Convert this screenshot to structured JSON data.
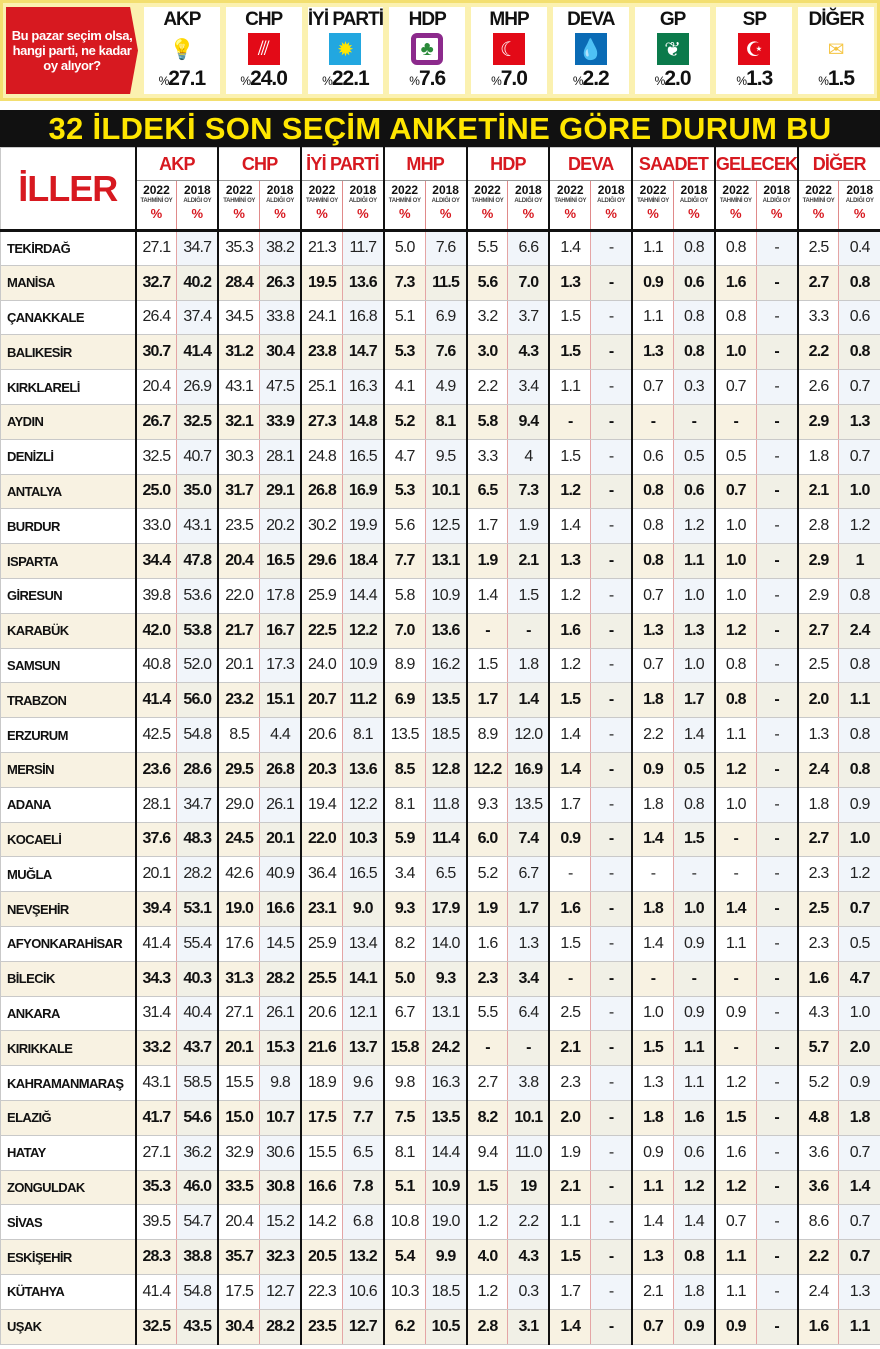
{
  "banner": {
    "question": "Bu pazar seçim olsa, hangi parti, ne kadar oy alıyor?",
    "parties": [
      {
        "name": "AKP",
        "value": "27.1",
        "icon": "light-bulb-icon",
        "color": "#f7a21b"
      },
      {
        "name": "CHP",
        "value": "24.0",
        "icon": "six-arrows-icon",
        "color": "#e30a17"
      },
      {
        "name": "İYİ PARTİ",
        "value": "22.1",
        "icon": "sun-icon",
        "color": "#22a7e0"
      },
      {
        "name": "HDP",
        "value": "7.6",
        "icon": "tree-icon",
        "color": "#8c2a8c"
      },
      {
        "name": "MHP",
        "value": "7.0",
        "icon": "three-crescents-icon",
        "color": "#e30a17"
      },
      {
        "name": "DEVA",
        "value": "2.2",
        "icon": "water-drop-icon",
        "color": "#0a6bb5"
      },
      {
        "name": "GP",
        "value": "2.0",
        "icon": "leaf-icon",
        "color": "#0b7a4b"
      },
      {
        "name": "SP",
        "value": "1.3",
        "icon": "crescent-star-icon",
        "color": "#e30a17"
      },
      {
        "name": "DİĞER",
        "value": "1.5",
        "icon": "ballot-box-icon",
        "color": "#f5c542"
      }
    ],
    "percent_sign": "%"
  },
  "title": "32 İLDEKİ SON SEÇİM ANKETİNE GÖRE DURUM BU",
  "chart_data": {
    "type": "table",
    "title": "32 İLDEKİ SON SEÇİM ANKETİNE GÖRE DURUM BU",
    "row_header": "İLLER",
    "groups": [
      "AKP",
      "CHP",
      "İYİ PARTİ",
      "MHP",
      "HDP",
      "DEVA",
      "SAADET",
      "GELECEK",
      "DİĞER"
    ],
    "subcolumns": [
      {
        "year": "2022",
        "label": "TAHMİNİ OY",
        "unit": "%"
      },
      {
        "year": "2018",
        "label": "ALDIĞI OY",
        "unit": "%"
      }
    ],
    "rows": [
      {
        "city": "TEKİRDAĞ",
        "values": [
          "27.1",
          "34.7",
          "35.3",
          "38.2",
          "21.3",
          "11.7",
          "5.0",
          "7.6",
          "5.5",
          "6.6",
          "1.4",
          "-",
          "1.1",
          "0.8",
          "0.8",
          "-",
          "2.5",
          "0.4"
        ]
      },
      {
        "city": "MANİSA",
        "values": [
          "32.7",
          "40.2",
          "28.4",
          "26.3",
          "19.5",
          "13.6",
          "7.3",
          "11.5",
          "5.6",
          "7.0",
          "1.3",
          "-",
          "0.9",
          "0.6",
          "1.6",
          "-",
          "2.7",
          "0.8"
        ]
      },
      {
        "city": "ÇANAKKALE",
        "values": [
          "26.4",
          "37.4",
          "34.5",
          "33.8",
          "24.1",
          "16.8",
          "5.1",
          "6.9",
          "3.2",
          "3.7",
          "1.5",
          "-",
          "1.1",
          "0.8",
          "0.8",
          "-",
          "3.3",
          "0.6"
        ]
      },
      {
        "city": "BALIKESİR",
        "values": [
          "30.7",
          "41.4",
          "31.2",
          "30.4",
          "23.8",
          "14.7",
          "5.3",
          "7.6",
          "3.0",
          "4.3",
          "1.5",
          "-",
          "1.3",
          "0.8",
          "1.0",
          "-",
          "2.2",
          "0.8"
        ]
      },
      {
        "city": "KIRKLARELİ",
        "values": [
          "20.4",
          "26.9",
          "43.1",
          "47.5",
          "25.1",
          "16.3",
          "4.1",
          "4.9",
          "2.2",
          "3.4",
          "1.1",
          "-",
          "0.7",
          "0.3",
          "0.7",
          "-",
          "2.6",
          "0.7"
        ]
      },
      {
        "city": "AYDIN",
        "values": [
          "26.7",
          "32.5",
          "32.1",
          "33.9",
          "27.3",
          "14.8",
          "5.2",
          "8.1",
          "5.8",
          "9.4",
          "-",
          "-",
          "-",
          "-",
          "-",
          "-",
          "2.9",
          "1.3"
        ]
      },
      {
        "city": "DENİZLİ",
        "values": [
          "32.5",
          "40.7",
          "30.3",
          "28.1",
          "24.8",
          "16.5",
          "4.7",
          "9.5",
          "3.3",
          "4",
          "1.5",
          "-",
          "0.6",
          "0.5",
          "0.5",
          "-",
          "1.8",
          "0.7"
        ]
      },
      {
        "city": "ANTALYA",
        "values": [
          "25.0",
          "35.0",
          "31.7",
          "29.1",
          "26.8",
          "16.9",
          "5.3",
          "10.1",
          "6.5",
          "7.3",
          "1.2",
          "-",
          "0.8",
          "0.6",
          "0.7",
          "-",
          "2.1",
          "1.0"
        ]
      },
      {
        "city": "BURDUR",
        "values": [
          "33.0",
          "43.1",
          "23.5",
          "20.2",
          "30.2",
          "19.9",
          "5.6",
          "12.5",
          "1.7",
          "1.9",
          "1.4",
          "-",
          "0.8",
          "1.2",
          "1.0",
          "-",
          "2.8",
          "1.2"
        ]
      },
      {
        "city": "ISPARTA",
        "values": [
          "34.4",
          "47.8",
          "20.4",
          "16.5",
          "29.6",
          "18.4",
          "7.7",
          "13.1",
          "1.9",
          "2.1",
          "1.3",
          "-",
          "0.8",
          "1.1",
          "1.0",
          "-",
          "2.9",
          "1"
        ]
      },
      {
        "city": "GİRESUN",
        "values": [
          "39.8",
          "53.6",
          "22.0",
          "17.8",
          "25.9",
          "14.4",
          "5.8",
          "10.9",
          "1.4",
          "1.5",
          "1.2",
          "-",
          "0.7",
          "1.0",
          "1.0",
          "-",
          "2.9",
          "0.8"
        ]
      },
      {
        "city": "KARABÜK",
        "values": [
          "42.0",
          "53.8",
          "21.7",
          "16.7",
          "22.5",
          "12.2",
          "7.0",
          "13.6",
          "-",
          "-",
          "1.6",
          "-",
          "1.3",
          "1.3",
          "1.2",
          "-",
          "2.7",
          "2.4"
        ]
      },
      {
        "city": "SAMSUN",
        "values": [
          "40.8",
          "52.0",
          "20.1",
          "17.3",
          "24.0",
          "10.9",
          "8.9",
          "16.2",
          "1.5",
          "1.8",
          "1.2",
          "-",
          "0.7",
          "1.0",
          "0.8",
          "-",
          "2.5",
          "0.8"
        ]
      },
      {
        "city": "TRABZON",
        "values": [
          "41.4",
          "56.0",
          "23.2",
          "15.1",
          "20.7",
          "11.2",
          "6.9",
          "13.5",
          "1.7",
          "1.4",
          "1.5",
          "-",
          "1.8",
          "1.7",
          "0.8",
          "-",
          "2.0",
          "1.1"
        ]
      },
      {
        "city": "ERZURUM",
        "values": [
          "42.5",
          "54.8",
          "8.5",
          "4.4",
          "20.6",
          "8.1",
          "13.5",
          "18.5",
          "8.9",
          "12.0",
          "1.4",
          "-",
          "2.2",
          "1.4",
          "1.1",
          "-",
          "1.3",
          "0.8"
        ]
      },
      {
        "city": "MERSİN",
        "values": [
          "23.6",
          "28.6",
          "29.5",
          "26.8",
          "20.3",
          "13.6",
          "8.5",
          "12.8",
          "12.2",
          "16.9",
          "1.4",
          "-",
          "0.9",
          "0.5",
          "1.2",
          "-",
          "2.4",
          "0.8"
        ]
      },
      {
        "city": "ADANA",
        "values": [
          "28.1",
          "34.7",
          "29.0",
          "26.1",
          "19.4",
          "12.2",
          "8.1",
          "11.8",
          "9.3",
          "13.5",
          "1.7",
          "-",
          "1.8",
          "0.8",
          "1.0",
          "-",
          "1.8",
          "0.9"
        ]
      },
      {
        "city": "KOCAELİ",
        "values": [
          "37.6",
          "48.3",
          "24.5",
          "20.1",
          "22.0",
          "10.3",
          "5.9",
          "11.4",
          "6.0",
          "7.4",
          "0.9",
          "-",
          "1.4",
          "1.5",
          "-",
          "-",
          "2.7",
          "1.0"
        ]
      },
      {
        "city": "MUĞLA",
        "values": [
          "20.1",
          "28.2",
          "42.6",
          "40.9",
          "36.4",
          "16.5",
          "3.4",
          "6.5",
          "5.2",
          "6.7",
          "-",
          "-",
          "-",
          "-",
          "-",
          "-",
          "2.3",
          "1.2"
        ]
      },
      {
        "city": "NEVŞEHİR",
        "values": [
          "39.4",
          "53.1",
          "19.0",
          "16.6",
          "23.1",
          "9.0",
          "9.3",
          "17.9",
          "1.9",
          "1.7",
          "1.6",
          "-",
          "1.8",
          "1.0",
          "1.4",
          "-",
          "2.5",
          "0.7"
        ]
      },
      {
        "city": "AFYONKARAHİSAR",
        "values": [
          "41.4",
          "55.4",
          "17.6",
          "14.5",
          "25.9",
          "13.4",
          "8.2",
          "14.0",
          "1.6",
          "1.3",
          "1.5",
          "-",
          "1.4",
          "0.9",
          "1.1",
          "-",
          "2.3",
          "0.5"
        ]
      },
      {
        "city": "BİLECİK",
        "values": [
          "34.3",
          "40.3",
          "31.3",
          "28.2",
          "25.5",
          "14.1",
          "5.0",
          "9.3",
          "2.3",
          "3.4",
          "-",
          "-",
          "-",
          "-",
          "-",
          "-",
          "1.6",
          "4.7"
        ]
      },
      {
        "city": "ANKARA",
        "values": [
          "31.4",
          "40.4",
          "27.1",
          "26.1",
          "20.6",
          "12.1",
          "6.7",
          "13.1",
          "5.5",
          "6.4",
          "2.5",
          "-",
          "1.0",
          "0.9",
          "0.9",
          "-",
          "4.3",
          "1.0"
        ]
      },
      {
        "city": "KIRIKKALE",
        "values": [
          "33.2",
          "43.7",
          "20.1",
          "15.3",
          "21.6",
          "13.7",
          "15.8",
          "24.2",
          "-",
          "-",
          "2.1",
          "-",
          "1.5",
          "1.1",
          "-",
          "-",
          "5.7",
          "2.0"
        ]
      },
      {
        "city": "KAHRAMANMARAŞ",
        "values": [
          "43.1",
          "58.5",
          "15.5",
          "9.8",
          "18.9",
          "9.6",
          "9.8",
          "16.3",
          "2.7",
          "3.8",
          "2.3",
          "-",
          "1.3",
          "1.1",
          "1.2",
          "-",
          "5.2",
          "0.9"
        ]
      },
      {
        "city": "ELAZIĞ",
        "values": [
          "41.7",
          "54.6",
          "15.0",
          "10.7",
          "17.5",
          "7.7",
          "7.5",
          "13.5",
          "8.2",
          "10.1",
          "2.0",
          "-",
          "1.8",
          "1.6",
          "1.5",
          "-",
          "4.8",
          "1.8"
        ]
      },
      {
        "city": "HATAY",
        "values": [
          "27.1",
          "36.2",
          "32.9",
          "30.6",
          "15.5",
          "6.5",
          "8.1",
          "14.4",
          "9.4",
          "11.0",
          "1.9",
          "-",
          "0.9",
          "0.6",
          "1.6",
          "-",
          "3.6",
          "0.7"
        ]
      },
      {
        "city": "ZONGULDAK",
        "values": [
          "35.3",
          "46.0",
          "33.5",
          "30.8",
          "16.6",
          "7.8",
          "5.1",
          "10.9",
          "1.5",
          "19",
          "2.1",
          "-",
          "1.1",
          "1.2",
          "1.2",
          "-",
          "3.6",
          "1.4"
        ]
      },
      {
        "city": "SİVAS",
        "values": [
          "39.5",
          "54.7",
          "20.4",
          "15.2",
          "14.2",
          "6.8",
          "10.8",
          "19.0",
          "1.2",
          "2.2",
          "1.1",
          "-",
          "1.4",
          "1.4",
          "0.7",
          "-",
          "8.6",
          "0.7"
        ]
      },
      {
        "city": "ESKİŞEHİR",
        "values": [
          "28.3",
          "38.8",
          "35.7",
          "32.3",
          "20.5",
          "13.2",
          "5.4",
          "9.9",
          "4.0",
          "4.3",
          "1.5",
          "-",
          "1.3",
          "0.8",
          "1.1",
          "-",
          "2.2",
          "0.7"
        ]
      },
      {
        "city": "KÜTAHYA",
        "values": [
          "41.4",
          "54.8",
          "17.5",
          "12.7",
          "22.3",
          "10.6",
          "10.3",
          "18.5",
          "1.2",
          "0.3",
          "1.7",
          "-",
          "2.1",
          "1.8",
          "1.1",
          "-",
          "2.4",
          "1.3"
        ]
      },
      {
        "city": "UŞAK",
        "values": [
          "32.5",
          "43.5",
          "30.4",
          "28.2",
          "23.5",
          "12.7",
          "6.2",
          "10.5",
          "2.8",
          "3.1",
          "1.4",
          "-",
          "0.7",
          "0.9",
          "0.9",
          "-",
          "1.6",
          "1.1"
        ]
      }
    ]
  }
}
